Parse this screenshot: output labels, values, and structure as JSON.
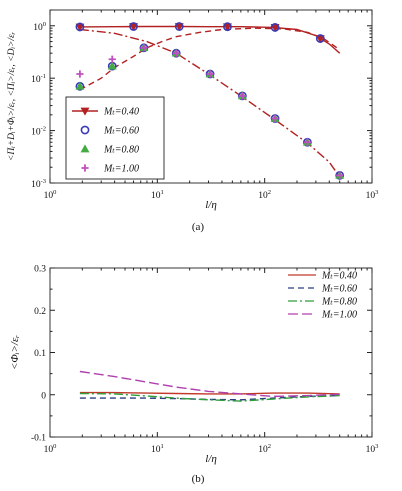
{
  "chart_data": [
    {
      "panel": "a",
      "caption": "(a)",
      "type": "line",
      "xlabel": "l/η",
      "ylabel": "<Πᵢ+Dᵢ+Φᵢ>/εᵣ, <Πᵢ>/εᵣ, <Dᵢ>/εᵣ",
      "xscale": "log",
      "yscale": "log",
      "xlim": [
        1,
        1000
      ],
      "ylim": [
        0.001,
        2
      ],
      "xticks": [
        {
          "value": 1,
          "base": "10",
          "exp": "0"
        },
        {
          "value": 10,
          "base": "10",
          "exp": "1"
        },
        {
          "value": 100,
          "base": "10",
          "exp": "2"
        },
        {
          "value": 1000,
          "base": "10",
          "exp": "3"
        }
      ],
      "yticks": [
        {
          "value": 0.001,
          "base": "10",
          "exp": "-3"
        },
        {
          "value": 0.01,
          "base": "10",
          "exp": "-2"
        },
        {
          "value": 0.1,
          "base": "10",
          "exp": "-1"
        },
        {
          "value": 1,
          "base": "10",
          "exp": "0"
        }
      ],
      "legend": {
        "placement": "lower-left",
        "entries": [
          {
            "label": "Mₜ=0.40",
            "marker": "triangle-down",
            "color": "#b22222"
          },
          {
            "label": "Mₜ=0.60",
            "marker": "circle-open",
            "color": "#3a3ab8"
          },
          {
            "label": "Mₜ=0.80",
            "marker": "triangle-up",
            "color": "#44aa44"
          },
          {
            "label": "Mₜ=1.00",
            "marker": "plus",
            "color": "#c050c0"
          }
        ]
      },
      "curves": [
        {
          "style": "solid",
          "color": "#b22222",
          "x": [
            1.9,
            4,
            8,
            15,
            30,
            60,
            120,
            200,
            300,
            400,
            500
          ],
          "y": [
            0.95,
            0.96,
            0.97,
            0.97,
            0.96,
            0.96,
            0.93,
            0.85,
            0.65,
            0.45,
            0.3
          ]
        },
        {
          "style": "dash",
          "color": "#b22222",
          "x": [
            1.9,
            3,
            4,
            6,
            8,
            11,
            15,
            25,
            40,
            80,
            150,
            250,
            350,
            500
          ],
          "y": [
            0.06,
            0.1,
            0.16,
            0.26,
            0.38,
            0.5,
            0.62,
            0.75,
            0.85,
            0.9,
            0.87,
            0.75,
            0.58,
            0.35
          ]
        },
        {
          "style": "dashdot",
          "color": "#b22222",
          "x": [
            1.9,
            4,
            8,
            15,
            30,
            60,
            120,
            250,
            400,
            500
          ],
          "y": [
            0.85,
            0.72,
            0.5,
            0.3,
            0.12,
            0.046,
            0.017,
            0.0058,
            0.0025,
            0.0013
          ]
        }
      ],
      "marker_sets": [
        {
          "name": "Mₜ=0.40",
          "marker": "triangle-down",
          "color": "#b22222",
          "x": [
            1.9,
            6,
            16,
            45,
            125,
            330
          ],
          "y": [
            0.95,
            0.97,
            0.97,
            0.96,
            0.93,
            0.57
          ]
        },
        {
          "name": "Mₜ=0.60",
          "marker": "circle-open",
          "color": "#3a3ab8",
          "x": [
            1.9,
            6,
            16,
            45,
            125,
            330,
            1.9,
            3.8,
            7.5,
            15,
            31,
            62,
            125,
            250,
            500
          ],
          "y": [
            0.95,
            0.97,
            0.97,
            0.96,
            0.93,
            0.57,
            0.07,
            0.17,
            0.38,
            0.3,
            0.12,
            0.046,
            0.017,
            0.006,
            0.0014
          ]
        },
        {
          "name": "Mₜ=0.80",
          "marker": "triangle-up",
          "color": "#44aa44",
          "x": [
            1.9,
            3.8,
            7.5,
            15,
            31,
            62,
            125,
            250,
            500
          ],
          "y": [
            0.07,
            0.17,
            0.38,
            0.3,
            0.12,
            0.046,
            0.017,
            0.006,
            0.0014
          ]
        },
        {
          "name": "Mₜ=1.00",
          "marker": "plus",
          "color": "#c050c0",
          "x": [
            1.9,
            3.8,
            7.5,
            15,
            31,
            62,
            125,
            250,
            500
          ],
          "y": [
            0.12,
            0.23,
            0.38,
            0.3,
            0.12,
            0.046,
            0.017,
            0.006,
            0.0014
          ]
        }
      ]
    },
    {
      "panel": "b",
      "caption": "(b)",
      "type": "line",
      "xlabel": "l/η",
      "ylabel": "<Φᵢ>/εᵣ",
      "xscale": "log",
      "yscale": "linear",
      "xlim": [
        1,
        1000
      ],
      "ylim": [
        -0.1,
        0.3
      ],
      "xticks": [
        {
          "value": 1,
          "base": "10",
          "exp": "0"
        },
        {
          "value": 10,
          "base": "10",
          "exp": "1"
        },
        {
          "value": 100,
          "base": "10",
          "exp": "2"
        },
        {
          "value": 1000,
          "base": "10",
          "exp": "3"
        }
      ],
      "yticks": [
        {
          "value": -0.1,
          "label": "-0.1"
        },
        {
          "value": 0,
          "label": "0"
        },
        {
          "value": 0.1,
          "label": "0.1"
        },
        {
          "value": 0.2,
          "label": "0.2"
        },
        {
          "value": 0.3,
          "label": "0.3"
        }
      ],
      "legend": {
        "placement": "top-right",
        "entries": [
          {
            "label": "Mₜ=0.40",
            "style": "solid",
            "color": "#c0392b"
          },
          {
            "label": "Mₜ=0.60",
            "style": "dash",
            "color": "#2c3e80"
          },
          {
            "label": "Mₜ=0.80",
            "style": "dashdot",
            "color": "#2e9d3a"
          },
          {
            "label": "Mₜ=1.00",
            "style": "longdash",
            "color": "#b040b0"
          }
        ]
      },
      "series": [
        {
          "name": "Mₜ=0.40",
          "style": "solid",
          "color": "#c0392b",
          "x": [
            1.9,
            4,
            8,
            15,
            30,
            60,
            120,
            250,
            500
          ],
          "y": [
            0.005,
            0.005,
            0.004,
            0.003,
            0.002,
            0.002,
            0.004,
            0.004,
            0.002
          ]
        },
        {
          "name": "Mₜ=0.60",
          "style": "dash",
          "color": "#2c3e80",
          "x": [
            1.9,
            4,
            8,
            15,
            30,
            60,
            120,
            250,
            500
          ],
          "y": [
            -0.008,
            -0.008,
            -0.008,
            -0.009,
            -0.011,
            -0.012,
            -0.008,
            -0.004,
            -0.002
          ]
        },
        {
          "name": "Mₜ=0.80",
          "style": "dashdot",
          "color": "#2e9d3a",
          "x": [
            1.9,
            4,
            8,
            15,
            30,
            60,
            120,
            250,
            500
          ],
          "y": [
            0.003,
            0.002,
            -0.003,
            -0.008,
            -0.012,
            -0.015,
            -0.01,
            -0.005,
            -0.002
          ]
        },
        {
          "name": "Mₜ=1.00",
          "style": "longdash",
          "color": "#b040b0",
          "x": [
            1.9,
            4,
            8,
            15,
            30,
            60,
            120,
            250,
            500
          ],
          "y": [
            0.055,
            0.043,
            0.03,
            0.018,
            0.008,
            0.002,
            -0.004,
            -0.002,
            0.001
          ]
        }
      ]
    }
  ]
}
